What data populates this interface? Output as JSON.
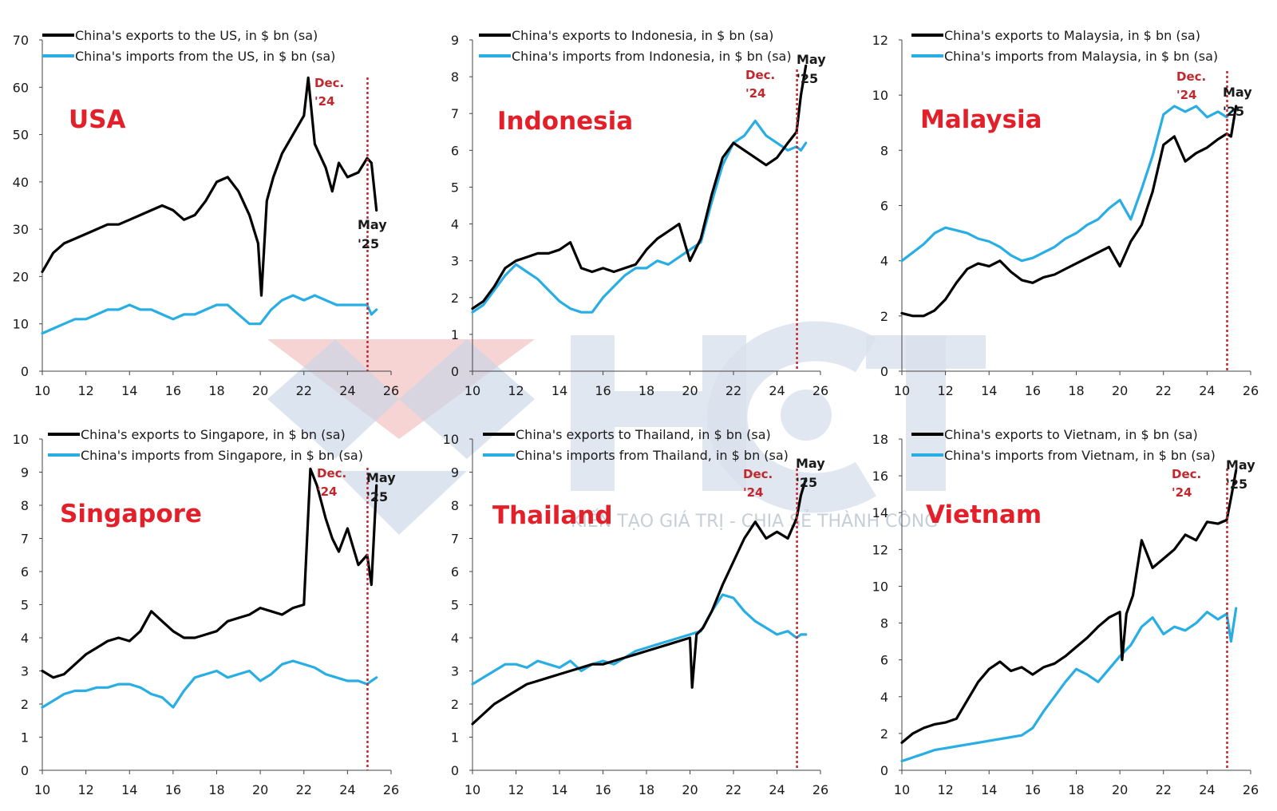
{
  "watermark": {
    "logo_letters": "HCT",
    "tagline": "KIẾN TẠO GIÁ TRỊ - CHIA SẺ THÀNH CÔNG"
  },
  "colors": {
    "exports": "#000000",
    "imports": "#29aee3",
    "marker": "#c0282d",
    "country": "#e3202a"
  },
  "chart_data": [
    {
      "type": "line",
      "country": "USA",
      "xlim": [
        10,
        26
      ],
      "ylim": [
        0,
        70
      ],
      "yticks": [
        0,
        10,
        20,
        30,
        40,
        50,
        60,
        70
      ],
      "xticks": [
        10,
        12,
        14,
        16,
        18,
        20,
        22,
        24,
        26
      ],
      "marker_x": 24.92,
      "marker_label": [
        "Dec.",
        "'24"
      ],
      "end_label": [
        "May",
        "'25"
      ],
      "series": [
        {
          "name": "China's exports to the US, in $ bn (sa)",
          "role": "exports",
          "x": [
            10,
            10.5,
            11,
            11.5,
            12,
            12.5,
            13,
            13.5,
            14,
            14.5,
            15,
            15.5,
            16,
            16.5,
            17,
            17.5,
            18,
            18.5,
            19,
            19.5,
            19.9,
            20.05,
            20.3,
            20.6,
            21,
            21.5,
            22,
            22.2,
            22.5,
            23,
            23.3,
            23.6,
            24,
            24.5,
            24.9,
            25.1,
            25.33
          ],
          "y": [
            21,
            25,
            27,
            28,
            29,
            30,
            31,
            31,
            32,
            33,
            34,
            35,
            34,
            32,
            33,
            36,
            40,
            41,
            38,
            33,
            27,
            16,
            36,
            41,
            46,
            50,
            54,
            62,
            48,
            43,
            38,
            44,
            41,
            42,
            45,
            44,
            34
          ]
        },
        {
          "name": "China's imports from the US, in $ bn (sa)",
          "role": "imports",
          "x": [
            10,
            10.5,
            11,
            11.5,
            12,
            12.5,
            13,
            13.5,
            14,
            14.5,
            15,
            15.5,
            16,
            16.5,
            17,
            17.5,
            18,
            18.5,
            19,
            19.5,
            20,
            20.5,
            21,
            21.5,
            22,
            22.5,
            23,
            23.5,
            24,
            24.5,
            24.9,
            25.1,
            25.33
          ],
          "y": [
            8,
            9,
            10,
            11,
            11,
            12,
            13,
            13,
            14,
            13,
            13,
            12,
            11,
            12,
            12,
            13,
            14,
            14,
            12,
            10,
            10,
            13,
            15,
            16,
            15,
            16,
            15,
            14,
            14,
            14,
            14,
            12,
            13
          ]
        }
      ]
    },
    {
      "type": "line",
      "country": "Indonesia",
      "xlim": [
        10,
        26
      ],
      "ylim": [
        0,
        9
      ],
      "yticks": [
        0,
        1,
        2,
        3,
        4,
        5,
        6,
        7,
        8,
        9
      ],
      "xticks": [
        10,
        12,
        14,
        16,
        18,
        20,
        22,
        24,
        26
      ],
      "marker_x": 24.92,
      "marker_label": [
        "Dec.",
        "'24"
      ],
      "end_label": [
        "May",
        "'25"
      ],
      "series": [
        {
          "name": "China's exports to Indonesia, in $ bn (sa)",
          "role": "exports",
          "x": [
            10,
            10.5,
            11,
            11.5,
            12,
            12.5,
            13,
            13.5,
            14,
            14.5,
            15,
            15.5,
            16,
            16.5,
            17,
            17.5,
            18,
            18.5,
            19,
            19.5,
            20,
            20.5,
            21,
            21.5,
            22,
            22.5,
            23,
            23.5,
            24,
            24.5,
            24.9,
            25.1,
            25.33
          ],
          "y": [
            1.7,
            1.9,
            2.3,
            2.8,
            3.0,
            3.1,
            3.2,
            3.2,
            3.3,
            3.5,
            2.8,
            2.7,
            2.8,
            2.7,
            2.8,
            2.9,
            3.3,
            3.6,
            3.8,
            4.0,
            3.0,
            3.6,
            4.8,
            5.8,
            6.2,
            6.0,
            5.8,
            5.6,
            5.8,
            6.2,
            6.5,
            7.5,
            8.3
          ]
        },
        {
          "name": "China's imports from Indonesia, in $ bn (sa)",
          "role": "imports",
          "x": [
            10,
            10.5,
            11,
            11.5,
            12,
            12.5,
            13,
            13.5,
            14,
            14.5,
            15,
            15.5,
            16,
            16.5,
            17,
            17.5,
            18,
            18.5,
            19,
            19.5,
            20,
            20.5,
            21,
            21.5,
            22,
            22.5,
            23,
            23.5,
            24,
            24.5,
            24.9,
            25.1,
            25.33
          ],
          "y": [
            1.6,
            1.8,
            2.2,
            2.6,
            2.9,
            2.7,
            2.5,
            2.2,
            1.9,
            1.7,
            1.6,
            1.6,
            2.0,
            2.3,
            2.6,
            2.8,
            2.8,
            3.0,
            2.9,
            3.1,
            3.3,
            3.5,
            4.6,
            5.6,
            6.2,
            6.4,
            6.8,
            6.4,
            6.2,
            6.0,
            6.1,
            6.0,
            6.2
          ]
        }
      ]
    },
    {
      "type": "line",
      "country": "Malaysia",
      "xlim": [
        10,
        26
      ],
      "ylim": [
        0,
        12
      ],
      "yticks": [
        0,
        2,
        4,
        6,
        8,
        10,
        12
      ],
      "xticks": [
        10,
        12,
        14,
        16,
        18,
        20,
        22,
        24,
        26
      ],
      "marker_x": 24.92,
      "marker_label": [
        "Dec.",
        "'24"
      ],
      "end_label": [
        "May",
        "'25"
      ],
      "series": [
        {
          "name": "China's exports to Malaysia, in $ bn (sa)",
          "role": "exports",
          "x": [
            10,
            10.5,
            11,
            11.5,
            12,
            12.5,
            13,
            13.5,
            14,
            14.5,
            15,
            15.5,
            16,
            16.5,
            17,
            17.5,
            18,
            18.5,
            19,
            19.5,
            20,
            20.5,
            21,
            21.5,
            22,
            22.5,
            23,
            23.5,
            24,
            24.5,
            24.9,
            25.1,
            25.33
          ],
          "y": [
            2.1,
            2.0,
            2.0,
            2.2,
            2.6,
            3.2,
            3.7,
            3.9,
            3.8,
            4.0,
            3.6,
            3.3,
            3.2,
            3.4,
            3.5,
            3.7,
            3.9,
            4.1,
            4.3,
            4.5,
            3.8,
            4.7,
            5.3,
            6.5,
            8.2,
            8.5,
            7.6,
            7.9,
            8.1,
            8.4,
            8.6,
            8.5,
            9.6
          ]
        },
        {
          "name": "China's imports from Malaysia, in $ bn (sa)",
          "role": "imports",
          "x": [
            10,
            10.5,
            11,
            11.5,
            12,
            12.5,
            13,
            13.5,
            14,
            14.5,
            15,
            15.5,
            16,
            16.5,
            17,
            17.5,
            18,
            18.5,
            19,
            19.5,
            20,
            20.5,
            21,
            21.5,
            22,
            22.5,
            23,
            23.5,
            24,
            24.5,
            24.9,
            25.1,
            25.33
          ],
          "y": [
            4.0,
            4.3,
            4.6,
            5.0,
            5.2,
            5.1,
            5.0,
            4.8,
            4.7,
            4.5,
            4.2,
            4.0,
            4.1,
            4.3,
            4.5,
            4.8,
            5.0,
            5.3,
            5.5,
            5.9,
            6.2,
            5.5,
            6.6,
            7.8,
            9.3,
            9.6,
            9.4,
            9.6,
            9.2,
            9.4,
            9.2,
            9.4,
            9.5
          ]
        }
      ]
    },
    {
      "type": "line",
      "country": "Singapore",
      "xlim": [
        10,
        26
      ],
      "ylim": [
        0,
        10
      ],
      "yticks": [
        0,
        1,
        2,
        3,
        4,
        5,
        6,
        7,
        8,
        9,
        10
      ],
      "xticks": [
        10,
        12,
        14,
        16,
        18,
        20,
        22,
        24,
        26
      ],
      "marker_x": 24.92,
      "marker_label": [
        "Dec.",
        "'24"
      ],
      "end_label": [
        "May",
        "'25"
      ],
      "series": [
        {
          "name": "China's exports to Singapore, in $ bn (sa)",
          "role": "exports",
          "x": [
            10,
            10.5,
            11,
            11.5,
            12,
            12.5,
            13,
            13.5,
            14,
            14.5,
            15,
            15.5,
            16,
            16.5,
            17,
            17.5,
            18,
            18.5,
            19,
            19.5,
            20,
            20.5,
            21,
            21.5,
            22,
            22.3,
            22.6,
            23,
            23.3,
            23.6,
            24,
            24.5,
            24.9,
            25.1,
            25.33
          ],
          "y": [
            3.0,
            2.8,
            2.9,
            3.2,
            3.5,
            3.7,
            3.9,
            4.0,
            3.9,
            4.2,
            4.8,
            4.5,
            4.2,
            4.0,
            4.0,
            4.1,
            4.2,
            4.5,
            4.6,
            4.7,
            4.9,
            4.8,
            4.7,
            4.9,
            5.0,
            9.1,
            8.6,
            7.6,
            7.0,
            6.6,
            7.3,
            6.2,
            6.5,
            5.6,
            8.6
          ]
        },
        {
          "name": "China's imports from Singapore, in $ bn (sa)",
          "role": "imports",
          "x": [
            10,
            10.5,
            11,
            11.5,
            12,
            12.5,
            13,
            13.5,
            14,
            14.5,
            15,
            15.5,
            16,
            16.5,
            17,
            17.5,
            18,
            18.5,
            19,
            19.5,
            20,
            20.5,
            21,
            21.5,
            22,
            22.5,
            23,
            23.5,
            24,
            24.5,
            24.9,
            25.1,
            25.33
          ],
          "y": [
            1.9,
            2.1,
            2.3,
            2.4,
            2.4,
            2.5,
            2.5,
            2.6,
            2.6,
            2.5,
            2.3,
            2.2,
            1.9,
            2.4,
            2.8,
            2.9,
            3.0,
            2.8,
            2.9,
            3.0,
            2.7,
            2.9,
            3.2,
            3.3,
            3.2,
            3.1,
            2.9,
            2.8,
            2.7,
            2.7,
            2.6,
            2.7,
            2.8
          ]
        }
      ]
    },
    {
      "type": "line",
      "country": "Thailand",
      "xlim": [
        10,
        26
      ],
      "ylim": [
        0,
        10
      ],
      "yticks": [
        0,
        1,
        2,
        3,
        4,
        5,
        6,
        7,
        8,
        9,
        10
      ],
      "xticks": [
        10,
        12,
        14,
        16,
        18,
        20,
        22,
        24,
        26
      ],
      "marker_x": 24.92,
      "marker_label": [
        "Dec.",
        "'24"
      ],
      "end_label": [
        "May",
        "'25"
      ],
      "series": [
        {
          "name": "China's exports to Thailand, in $ bn (sa)",
          "role": "exports",
          "x": [
            10,
            10.5,
            11,
            11.5,
            12,
            12.5,
            13,
            13.5,
            14,
            14.5,
            15,
            15.5,
            16,
            16.5,
            17,
            17.5,
            18,
            18.5,
            19,
            19.5,
            20,
            20.1,
            20.3,
            20.6,
            21,
            21.5,
            22,
            22.5,
            23,
            23.5,
            24,
            24.5,
            24.9,
            25.1,
            25.33
          ],
          "y": [
            1.4,
            1.7,
            2.0,
            2.2,
            2.4,
            2.6,
            2.7,
            2.8,
            2.9,
            3.0,
            3.1,
            3.2,
            3.2,
            3.3,
            3.4,
            3.5,
            3.6,
            3.7,
            3.8,
            3.9,
            4.0,
            2.5,
            4.1,
            4.3,
            4.8,
            5.6,
            6.3,
            7.0,
            7.5,
            7.0,
            7.2,
            7.0,
            7.6,
            8.3,
            8.8
          ]
        },
        {
          "name": "China's imports from Thailand, in $ bn (sa)",
          "role": "imports",
          "x": [
            10,
            10.5,
            11,
            11.5,
            12,
            12.5,
            13,
            13.5,
            14,
            14.5,
            15,
            15.5,
            16,
            16.5,
            17,
            17.5,
            18,
            18.5,
            19,
            19.5,
            20,
            20.5,
            21,
            21.5,
            22,
            22.5,
            23,
            23.5,
            24,
            24.5,
            24.9,
            25.1,
            25.33
          ],
          "y": [
            2.6,
            2.8,
            3.0,
            3.2,
            3.2,
            3.1,
            3.3,
            3.2,
            3.1,
            3.3,
            3.0,
            3.2,
            3.3,
            3.2,
            3.4,
            3.6,
            3.7,
            3.8,
            3.9,
            4.0,
            4.1,
            4.2,
            4.8,
            5.3,
            5.2,
            4.8,
            4.5,
            4.3,
            4.1,
            4.2,
            4.0,
            4.1,
            4.1
          ]
        }
      ]
    },
    {
      "type": "line",
      "country": "Vietnam",
      "xlim": [
        10,
        26
      ],
      "ylim": [
        0,
        18
      ],
      "yticks": [
        0,
        2,
        4,
        6,
        8,
        10,
        12,
        14,
        16,
        18
      ],
      "xticks": [
        10,
        12,
        14,
        16,
        18,
        20,
        22,
        24,
        26
      ],
      "marker_x": 24.92,
      "marker_label": [
        "Dec.",
        "'24"
      ],
      "end_label": [
        "May",
        "'25"
      ],
      "series": [
        {
          "name": "China's exports to Vietnam, in $ bn (sa)",
          "role": "exports",
          "x": [
            10,
            10.5,
            11,
            11.5,
            12,
            12.5,
            13,
            13.5,
            14,
            14.5,
            15,
            15.5,
            16,
            16.5,
            17,
            17.5,
            18,
            18.5,
            19,
            19.5,
            20,
            20.1,
            20.3,
            20.6,
            21,
            21.5,
            22,
            22.5,
            23,
            23.5,
            24,
            24.5,
            24.9,
            25.1,
            25.33
          ],
          "y": [
            1.5,
            2.0,
            2.3,
            2.5,
            2.6,
            2.8,
            3.8,
            4.8,
            5.5,
            5.9,
            5.4,
            5.6,
            5.2,
            5.6,
            5.8,
            6.2,
            6.7,
            7.2,
            7.8,
            8.3,
            8.6,
            6.0,
            8.5,
            9.5,
            12.5,
            11.0,
            11.5,
            12.0,
            12.8,
            12.5,
            13.5,
            13.4,
            13.6,
            14.8,
            16.3
          ]
        },
        {
          "name": "China's imports from Vietnam, in $ bn (sa)",
          "role": "imports",
          "x": [
            10,
            10.5,
            11,
            11.5,
            12,
            12.5,
            13,
            13.5,
            14,
            14.5,
            15,
            15.5,
            16,
            16.5,
            17,
            17.5,
            18,
            18.5,
            19,
            19.5,
            20,
            20.5,
            21,
            21.5,
            22,
            22.5,
            23,
            23.5,
            24,
            24.5,
            24.9,
            25.1,
            25.33
          ],
          "y": [
            0.5,
            0.7,
            0.9,
            1.1,
            1.2,
            1.3,
            1.4,
            1.5,
            1.6,
            1.7,
            1.8,
            1.9,
            2.3,
            3.2,
            4.0,
            4.8,
            5.5,
            5.2,
            4.8,
            5.5,
            6.2,
            6.8,
            7.8,
            8.3,
            7.4,
            7.8,
            7.6,
            8.0,
            8.6,
            8.2,
            8.5,
            7.0,
            8.8
          ]
        }
      ]
    }
  ]
}
